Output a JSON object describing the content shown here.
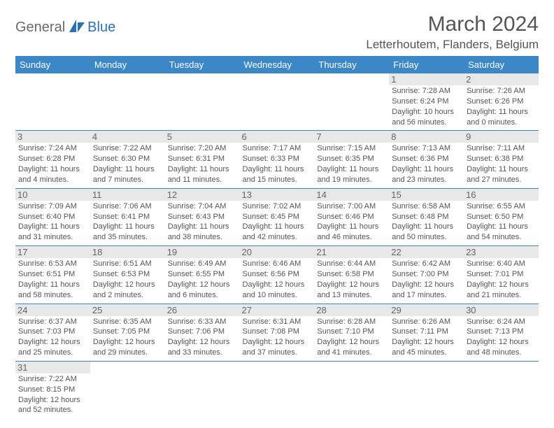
{
  "logo": {
    "part1": "General",
    "part2": "Blue"
  },
  "title": "March 2024",
  "location": "Letterhoutem, Flanders, Belgium",
  "header_bg": "#3b87c8",
  "days": [
    "Sunday",
    "Monday",
    "Tuesday",
    "Wednesday",
    "Thursday",
    "Friday",
    "Saturday"
  ],
  "first_day_index": 5,
  "cells": [
    {
      "n": 1,
      "sr": "7:28 AM",
      "ss": "6:24 PM",
      "dl": "10 hours and 56 minutes."
    },
    {
      "n": 2,
      "sr": "7:26 AM",
      "ss": "6:26 PM",
      "dl": "11 hours and 0 minutes."
    },
    {
      "n": 3,
      "sr": "7:24 AM",
      "ss": "6:28 PM",
      "dl": "11 hours and 4 minutes."
    },
    {
      "n": 4,
      "sr": "7:22 AM",
      "ss": "6:30 PM",
      "dl": "11 hours and 7 minutes."
    },
    {
      "n": 5,
      "sr": "7:20 AM",
      "ss": "6:31 PM",
      "dl": "11 hours and 11 minutes."
    },
    {
      "n": 6,
      "sr": "7:17 AM",
      "ss": "6:33 PM",
      "dl": "11 hours and 15 minutes."
    },
    {
      "n": 7,
      "sr": "7:15 AM",
      "ss": "6:35 PM",
      "dl": "11 hours and 19 minutes."
    },
    {
      "n": 8,
      "sr": "7:13 AM",
      "ss": "6:36 PM",
      "dl": "11 hours and 23 minutes."
    },
    {
      "n": 9,
      "sr": "7:11 AM",
      "ss": "6:38 PM",
      "dl": "11 hours and 27 minutes."
    },
    {
      "n": 10,
      "sr": "7:09 AM",
      "ss": "6:40 PM",
      "dl": "11 hours and 31 minutes."
    },
    {
      "n": 11,
      "sr": "7:06 AM",
      "ss": "6:41 PM",
      "dl": "11 hours and 35 minutes."
    },
    {
      "n": 12,
      "sr": "7:04 AM",
      "ss": "6:43 PM",
      "dl": "11 hours and 38 minutes."
    },
    {
      "n": 13,
      "sr": "7:02 AM",
      "ss": "6:45 PM",
      "dl": "11 hours and 42 minutes."
    },
    {
      "n": 14,
      "sr": "7:00 AM",
      "ss": "6:46 PM",
      "dl": "11 hours and 46 minutes."
    },
    {
      "n": 15,
      "sr": "6:58 AM",
      "ss": "6:48 PM",
      "dl": "11 hours and 50 minutes."
    },
    {
      "n": 16,
      "sr": "6:55 AM",
      "ss": "6:50 PM",
      "dl": "11 hours and 54 minutes."
    },
    {
      "n": 17,
      "sr": "6:53 AM",
      "ss": "6:51 PM",
      "dl": "11 hours and 58 minutes."
    },
    {
      "n": 18,
      "sr": "6:51 AM",
      "ss": "6:53 PM",
      "dl": "12 hours and 2 minutes."
    },
    {
      "n": 19,
      "sr": "6:49 AM",
      "ss": "6:55 PM",
      "dl": "12 hours and 6 minutes."
    },
    {
      "n": 20,
      "sr": "6:46 AM",
      "ss": "6:56 PM",
      "dl": "12 hours and 10 minutes."
    },
    {
      "n": 21,
      "sr": "6:44 AM",
      "ss": "6:58 PM",
      "dl": "12 hours and 13 minutes."
    },
    {
      "n": 22,
      "sr": "6:42 AM",
      "ss": "7:00 PM",
      "dl": "12 hours and 17 minutes."
    },
    {
      "n": 23,
      "sr": "6:40 AM",
      "ss": "7:01 PM",
      "dl": "12 hours and 21 minutes."
    },
    {
      "n": 24,
      "sr": "6:37 AM",
      "ss": "7:03 PM",
      "dl": "12 hours and 25 minutes."
    },
    {
      "n": 25,
      "sr": "6:35 AM",
      "ss": "7:05 PM",
      "dl": "12 hours and 29 minutes."
    },
    {
      "n": 26,
      "sr": "6:33 AM",
      "ss": "7:06 PM",
      "dl": "12 hours and 33 minutes."
    },
    {
      "n": 27,
      "sr": "6:31 AM",
      "ss": "7:08 PM",
      "dl": "12 hours and 37 minutes."
    },
    {
      "n": 28,
      "sr": "6:28 AM",
      "ss": "7:10 PM",
      "dl": "12 hours and 41 minutes."
    },
    {
      "n": 29,
      "sr": "6:26 AM",
      "ss": "7:11 PM",
      "dl": "12 hours and 45 minutes."
    },
    {
      "n": 30,
      "sr": "6:24 AM",
      "ss": "7:13 PM",
      "dl": "12 hours and 48 minutes."
    },
    {
      "n": 31,
      "sr": "7:22 AM",
      "ss": "8:15 PM",
      "dl": "12 hours and 52 minutes."
    }
  ],
  "labels": {
    "sunrise": "Sunrise:",
    "sunset": "Sunset:",
    "daylight": "Daylight:"
  }
}
